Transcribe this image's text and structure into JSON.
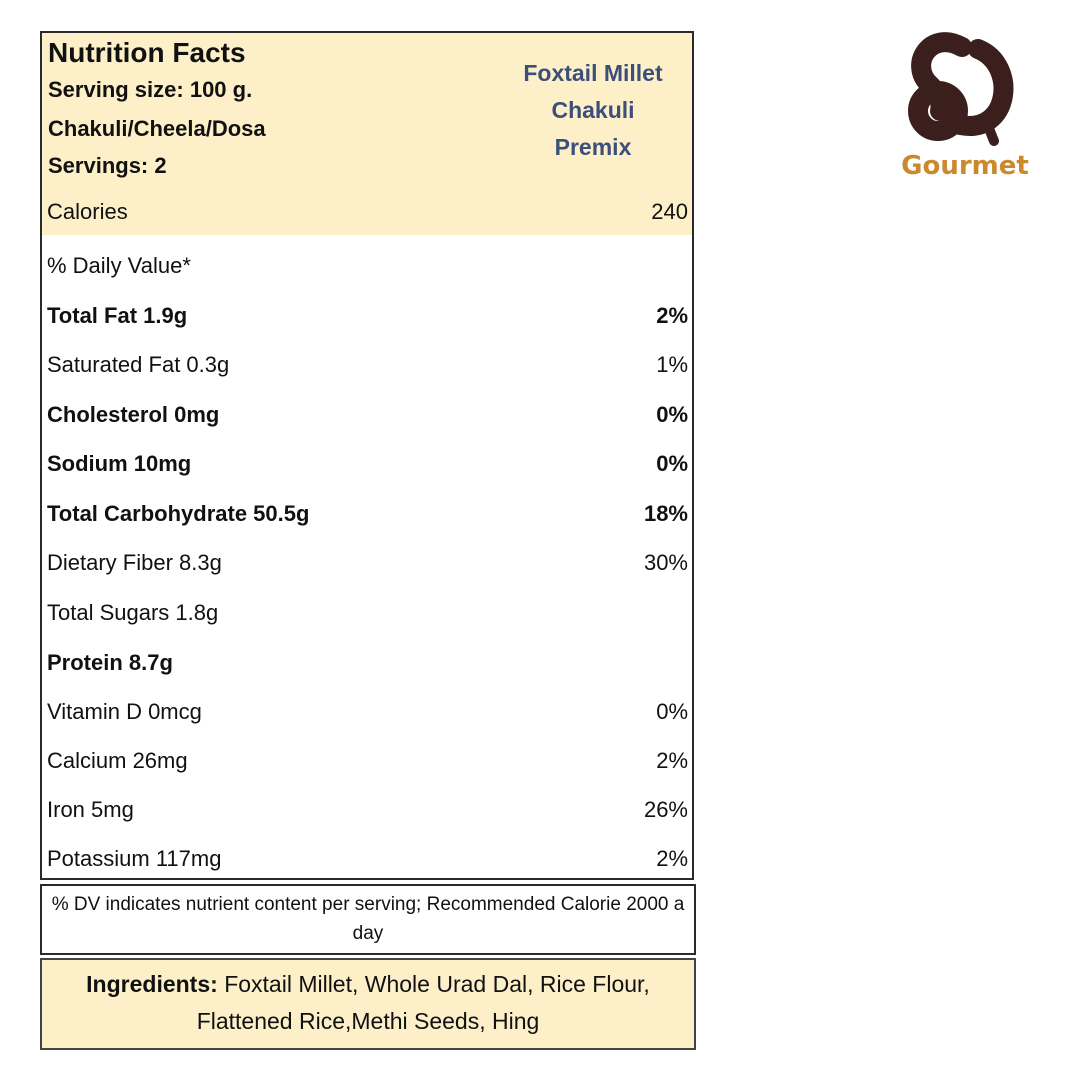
{
  "label": {
    "title": "Nutrition Facts",
    "serving_size": "Serving size: 100 g.",
    "preparation": "Chakuli/Cheela/Dosa",
    "servings": "Servings: 2",
    "product_name": [
      "Foxtail Millet",
      "Chakuli",
      "Premix"
    ],
    "calories_label": "Calories",
    "calories_value": "240",
    "daily_value_header": "% Daily Value*",
    "nutrients": [
      {
        "name": "Total Fat 1.9g",
        "dv": "2%",
        "bold": true
      },
      {
        "name": "Saturated Fat 0.3g",
        "dv": "1%",
        "bold": false
      },
      {
        "name": "Cholesterol 0mg",
        "dv": "0%",
        "bold": true
      },
      {
        "name": "Sodium 10mg",
        "dv": "0%",
        "bold": true
      },
      {
        "name": "Total Carbohydrate 50.5g",
        "dv": "18%",
        "bold": true
      },
      {
        "name": "Dietary Fiber 8.3g",
        "dv": "30%",
        "bold": false
      },
      {
        "name": "Total Sugars 1.8g",
        "dv": "",
        "bold": false
      },
      {
        "name": "Protein 8.7g",
        "dv": "",
        "bold": true
      },
      {
        "name": "Vitamin D 0mcg",
        "dv": "0%",
        "bold": false
      },
      {
        "name": "Calcium 26mg",
        "dv": "2%",
        "bold": false
      },
      {
        "name": "Iron 5mg",
        "dv": "26%",
        "bold": false
      },
      {
        "name": "Potassium 117mg",
        "dv": "2%",
        "bold": false
      }
    ]
  },
  "footnote": "% DV indicates nutrient content per serving; Recommended Calorie 2000 a day",
  "ingredients": {
    "heading": "Ingredients:",
    "text": "Foxtail Millet, Whole Urad Dal, Rice Flour, Flattened Rice,Methi Seeds, Hing"
  },
  "logo": {
    "text": "Gourmet",
    "icon": "gourmet-logo-icon",
    "colors": {
      "mark": "#3a1f1c",
      "text": "#c9892c"
    }
  },
  "colors": {
    "header_bg": "#fdf0c8",
    "product_text": "#3c4f7a",
    "border": "#2a2a2a"
  }
}
